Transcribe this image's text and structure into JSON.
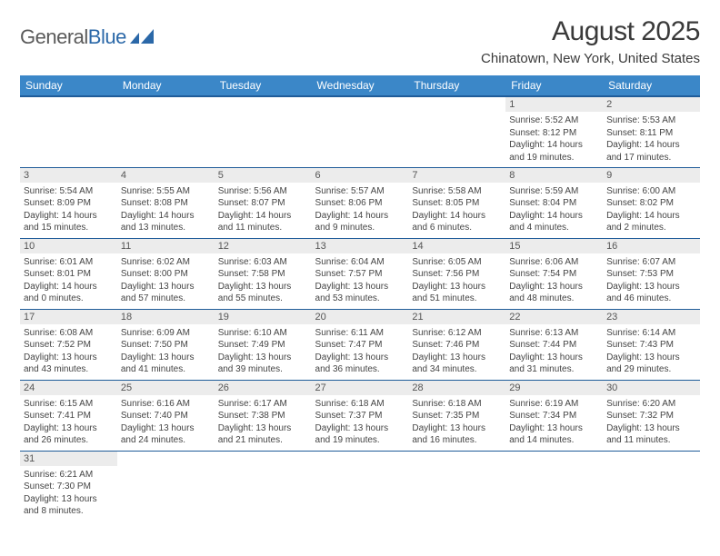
{
  "logo": {
    "text_a": "General",
    "text_b": "Blue"
  },
  "title": "August 2025",
  "location": "Chinatown, New York, United States",
  "style": {
    "header_bg": "#3b87c8",
    "header_border": "#1f5c99",
    "daynum_bg": "#ececec",
    "page_bg": "#ffffff",
    "text_color": "#444444",
    "logo_gray": "#5a5a5a",
    "logo_blue": "#2b68a8"
  },
  "weekdays": [
    "Sunday",
    "Monday",
    "Tuesday",
    "Wednesday",
    "Thursday",
    "Friday",
    "Saturday"
  ],
  "weeks": [
    [
      {
        "empty": true,
        "num": ""
      },
      {
        "empty": true,
        "num": ""
      },
      {
        "empty": true,
        "num": ""
      },
      {
        "empty": true,
        "num": ""
      },
      {
        "empty": true,
        "num": ""
      },
      {
        "num": "1",
        "sunrise": "Sunrise: 5:52 AM",
        "sunset": "Sunset: 8:12 PM",
        "daylight": "Daylight: 14 hours and 19 minutes."
      },
      {
        "num": "2",
        "sunrise": "Sunrise: 5:53 AM",
        "sunset": "Sunset: 8:11 PM",
        "daylight": "Daylight: 14 hours and 17 minutes."
      }
    ],
    [
      {
        "num": "3",
        "sunrise": "Sunrise: 5:54 AM",
        "sunset": "Sunset: 8:09 PM",
        "daylight": "Daylight: 14 hours and 15 minutes."
      },
      {
        "num": "4",
        "sunrise": "Sunrise: 5:55 AM",
        "sunset": "Sunset: 8:08 PM",
        "daylight": "Daylight: 14 hours and 13 minutes."
      },
      {
        "num": "5",
        "sunrise": "Sunrise: 5:56 AM",
        "sunset": "Sunset: 8:07 PM",
        "daylight": "Daylight: 14 hours and 11 minutes."
      },
      {
        "num": "6",
        "sunrise": "Sunrise: 5:57 AM",
        "sunset": "Sunset: 8:06 PM",
        "daylight": "Daylight: 14 hours and 9 minutes."
      },
      {
        "num": "7",
        "sunrise": "Sunrise: 5:58 AM",
        "sunset": "Sunset: 8:05 PM",
        "daylight": "Daylight: 14 hours and 6 minutes."
      },
      {
        "num": "8",
        "sunrise": "Sunrise: 5:59 AM",
        "sunset": "Sunset: 8:04 PM",
        "daylight": "Daylight: 14 hours and 4 minutes."
      },
      {
        "num": "9",
        "sunrise": "Sunrise: 6:00 AM",
        "sunset": "Sunset: 8:02 PM",
        "daylight": "Daylight: 14 hours and 2 minutes."
      }
    ],
    [
      {
        "num": "10",
        "sunrise": "Sunrise: 6:01 AM",
        "sunset": "Sunset: 8:01 PM",
        "daylight": "Daylight: 14 hours and 0 minutes."
      },
      {
        "num": "11",
        "sunrise": "Sunrise: 6:02 AM",
        "sunset": "Sunset: 8:00 PM",
        "daylight": "Daylight: 13 hours and 57 minutes."
      },
      {
        "num": "12",
        "sunrise": "Sunrise: 6:03 AM",
        "sunset": "Sunset: 7:58 PM",
        "daylight": "Daylight: 13 hours and 55 minutes."
      },
      {
        "num": "13",
        "sunrise": "Sunrise: 6:04 AM",
        "sunset": "Sunset: 7:57 PM",
        "daylight": "Daylight: 13 hours and 53 minutes."
      },
      {
        "num": "14",
        "sunrise": "Sunrise: 6:05 AM",
        "sunset": "Sunset: 7:56 PM",
        "daylight": "Daylight: 13 hours and 51 minutes."
      },
      {
        "num": "15",
        "sunrise": "Sunrise: 6:06 AM",
        "sunset": "Sunset: 7:54 PM",
        "daylight": "Daylight: 13 hours and 48 minutes."
      },
      {
        "num": "16",
        "sunrise": "Sunrise: 6:07 AM",
        "sunset": "Sunset: 7:53 PM",
        "daylight": "Daylight: 13 hours and 46 minutes."
      }
    ],
    [
      {
        "num": "17",
        "sunrise": "Sunrise: 6:08 AM",
        "sunset": "Sunset: 7:52 PM",
        "daylight": "Daylight: 13 hours and 43 minutes."
      },
      {
        "num": "18",
        "sunrise": "Sunrise: 6:09 AM",
        "sunset": "Sunset: 7:50 PM",
        "daylight": "Daylight: 13 hours and 41 minutes."
      },
      {
        "num": "19",
        "sunrise": "Sunrise: 6:10 AM",
        "sunset": "Sunset: 7:49 PM",
        "daylight": "Daylight: 13 hours and 39 minutes."
      },
      {
        "num": "20",
        "sunrise": "Sunrise: 6:11 AM",
        "sunset": "Sunset: 7:47 PM",
        "daylight": "Daylight: 13 hours and 36 minutes."
      },
      {
        "num": "21",
        "sunrise": "Sunrise: 6:12 AM",
        "sunset": "Sunset: 7:46 PM",
        "daylight": "Daylight: 13 hours and 34 minutes."
      },
      {
        "num": "22",
        "sunrise": "Sunrise: 6:13 AM",
        "sunset": "Sunset: 7:44 PM",
        "daylight": "Daylight: 13 hours and 31 minutes."
      },
      {
        "num": "23",
        "sunrise": "Sunrise: 6:14 AM",
        "sunset": "Sunset: 7:43 PM",
        "daylight": "Daylight: 13 hours and 29 minutes."
      }
    ],
    [
      {
        "num": "24",
        "sunrise": "Sunrise: 6:15 AM",
        "sunset": "Sunset: 7:41 PM",
        "daylight": "Daylight: 13 hours and 26 minutes."
      },
      {
        "num": "25",
        "sunrise": "Sunrise: 6:16 AM",
        "sunset": "Sunset: 7:40 PM",
        "daylight": "Daylight: 13 hours and 24 minutes."
      },
      {
        "num": "26",
        "sunrise": "Sunrise: 6:17 AM",
        "sunset": "Sunset: 7:38 PM",
        "daylight": "Daylight: 13 hours and 21 minutes."
      },
      {
        "num": "27",
        "sunrise": "Sunrise: 6:18 AM",
        "sunset": "Sunset: 7:37 PM",
        "daylight": "Daylight: 13 hours and 19 minutes."
      },
      {
        "num": "28",
        "sunrise": "Sunrise: 6:18 AM",
        "sunset": "Sunset: 7:35 PM",
        "daylight": "Daylight: 13 hours and 16 minutes."
      },
      {
        "num": "29",
        "sunrise": "Sunrise: 6:19 AM",
        "sunset": "Sunset: 7:34 PM",
        "daylight": "Daylight: 13 hours and 14 minutes."
      },
      {
        "num": "30",
        "sunrise": "Sunrise: 6:20 AM",
        "sunset": "Sunset: 7:32 PM",
        "daylight": "Daylight: 13 hours and 11 minutes."
      }
    ],
    [
      {
        "num": "31",
        "sunrise": "Sunrise: 6:21 AM",
        "sunset": "Sunset: 7:30 PM",
        "daylight": "Daylight: 13 hours and 8 minutes."
      },
      {
        "empty": true,
        "num": ""
      },
      {
        "empty": true,
        "num": ""
      },
      {
        "empty": true,
        "num": ""
      },
      {
        "empty": true,
        "num": ""
      },
      {
        "empty": true,
        "num": ""
      },
      {
        "empty": true,
        "num": ""
      }
    ]
  ]
}
